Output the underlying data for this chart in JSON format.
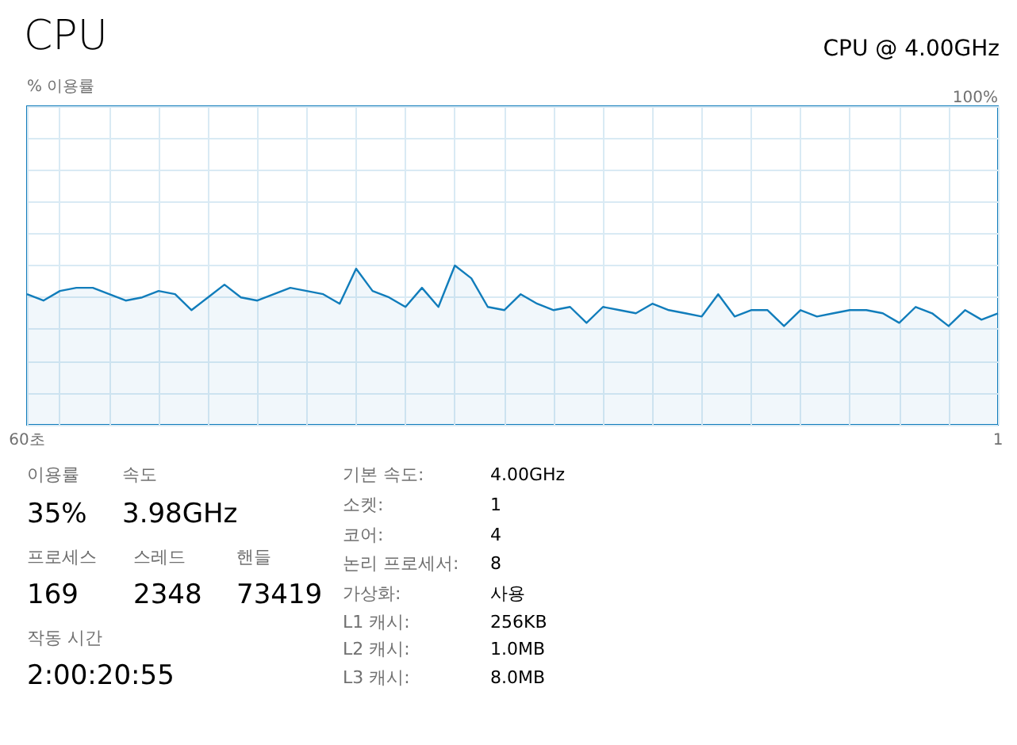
{
  "chart_data": {
    "type": "area",
    "title": "CPU",
    "subtitle": "CPU @ 4.00GHz",
    "ylabel": "% 이용률",
    "x": [
      60,
      59,
      58,
      57,
      56,
      55,
      54,
      53,
      52,
      51,
      50,
      49,
      48,
      47,
      46,
      45,
      44,
      43,
      42,
      41,
      40,
      39,
      38,
      37,
      36,
      35,
      34,
      33,
      32,
      31,
      30,
      29,
      28,
      27,
      26,
      25,
      24,
      23,
      22,
      21,
      20,
      19,
      18,
      17,
      16,
      15,
      14,
      13,
      12,
      11,
      10,
      9,
      8,
      7,
      6,
      5,
      4,
      3,
      2,
      1
    ],
    "series": [
      {
        "color": "#117dbb",
        "values": [
          41,
          39,
          42,
          43,
          43,
          41,
          39,
          40,
          42,
          41,
          36,
          40,
          44,
          40,
          39,
          41,
          43,
          42,
          41,
          38,
          49,
          42,
          40,
          37,
          43,
          37,
          50,
          46,
          37,
          36,
          41,
          38,
          36,
          37,
          32,
          37,
          36,
          35,
          38,
          36,
          35,
          34,
          41,
          34,
          36,
          36,
          31,
          36,
          34,
          35,
          36,
          36,
          35,
          32,
          37,
          35,
          31,
          36,
          33,
          35
        ]
      }
    ],
    "xlim": [
      60,
      1
    ],
    "xticks": [
      {
        "value": 60,
        "label": "60초"
      },
      {
        "value": 58,
        "label": null
      },
      {
        "value": 55,
        "label": null
      },
      {
        "value": 52,
        "label": null
      },
      {
        "value": 49,
        "label": null
      },
      {
        "value": 46,
        "label": null
      },
      {
        "value": 43,
        "label": null
      },
      {
        "value": 40,
        "label": null
      },
      {
        "value": 37,
        "label": null
      },
      {
        "value": 34,
        "label": null
      },
      {
        "value": 31,
        "label": null
      },
      {
        "value": 28,
        "label": null
      },
      {
        "value": 25,
        "label": null
      },
      {
        "value": 22,
        "label": null
      },
      {
        "value": 19,
        "label": null
      },
      {
        "value": 16,
        "label": null
      },
      {
        "value": 13,
        "label": null
      },
      {
        "value": 10,
        "label": null
      },
      {
        "value": 7,
        "label": null
      },
      {
        "value": 4,
        "label": null
      },
      {
        "value": 1,
        "label": "1"
      }
    ],
    "ylim": [
      0,
      100
    ],
    "yticks": [
      {
        "value": 0,
        "label": null
      },
      {
        "value": 10,
        "label": null
      },
      {
        "value": 20,
        "label": null
      },
      {
        "value": 30,
        "label": null
      },
      {
        "value": 40,
        "label": null
      },
      {
        "value": 50,
        "label": null
      },
      {
        "value": 60,
        "label": null
      },
      {
        "value": 70,
        "label": null
      },
      {
        "value": 80,
        "label": null
      },
      {
        "value": 90,
        "label": null
      },
      {
        "value": 100,
        "label": "100%"
      }
    ],
    "grid": true,
    "marker": "none",
    "annotations": [
      "이용률",
      "35%",
      "속도",
      "3.98GHz",
      "프로세스",
      "169",
      "스레드",
      "2348",
      "핸들",
      "73419",
      "작동 시간",
      "2:00:20:55",
      "기본 속도:",
      "4.00GHz",
      "소켓:",
      "1",
      "코어:",
      "4",
      "논리 프로세서:",
      "8",
      "가상화:",
      "사용",
      "L1 캐시:",
      "256KB",
      "L2 캐시:",
      "1.0MB",
      "L3 캐시:",
      "8.0MB"
    ]
  }
}
